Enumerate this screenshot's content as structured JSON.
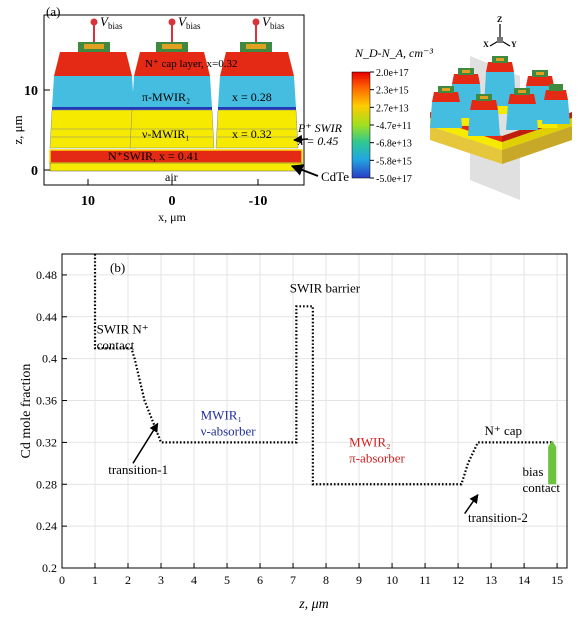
{
  "panel_a": {
    "label": "(a)",
    "bias_labels": [
      "V",
      "bias"
    ],
    "y_ticks": [
      "10",
      "0"
    ],
    "y_label": "z, μm",
    "x_ticks": [
      "10",
      "0",
      "-10"
    ],
    "x_label": "x, μm",
    "layers": {
      "cap": "N⁺ cap layer, x=0.32",
      "pi": "π-MWIR₂",
      "pi_x": "x = 0.28",
      "nu": "ν-MWIR₁",
      "nu_x": "x = 0.32",
      "swir": "N⁺SWIR, x = 0.41",
      "air": "air"
    },
    "pswir_label": "P⁺ SWIR",
    "pswir_x": "x = 0.45",
    "cdte_label": "CdTe",
    "colorbar": {
      "title": "N_D-N_A, cm⁻³",
      "ticks": [
        "2.0e+17",
        "2.3e+15",
        "2.7e+13",
        "-4.7e+11",
        "-6.8e+13",
        "-5.8e+15",
        "-5.0e+17"
      ],
      "colors": [
        "#e60000",
        "#ff6600",
        "#ffcc00",
        "#a0e020",
        "#30c890",
        "#22a8e0",
        "#2a3cc8"
      ]
    },
    "axis_3d": {
      "z": "Z",
      "x": "X",
      "y": "Y"
    }
  },
  "chart_data": {
    "type": "line",
    "title": "(b)",
    "xlabel": "z,  μm",
    "ylabel": "Cd mole fraction",
    "xlim": [
      0,
      15.3
    ],
    "ylim": [
      0.2,
      0.5
    ],
    "xticks": [
      0,
      1,
      2,
      3,
      4,
      5,
      6,
      7,
      8,
      9,
      10,
      11,
      12,
      13,
      14,
      15
    ],
    "yticks": [
      0.2,
      0.24,
      0.28,
      0.32,
      0.36,
      0.4,
      0.44,
      0.48
    ],
    "grid": true,
    "series": [
      {
        "style": "dotted",
        "x": [
          1.0,
          1.0,
          1.1,
          1.1,
          2.1,
          2.2,
          2.5,
          3.0,
          7.1,
          7.1,
          7.6,
          7.6,
          12.1,
          12.3,
          12.6,
          14.9
        ],
        "y": [
          0.5,
          0.41,
          0.41,
          0.41,
          0.41,
          0.4,
          0.36,
          0.32,
          0.32,
          0.45,
          0.45,
          0.28,
          0.28,
          0.3,
          0.32,
          0.32
        ]
      }
    ],
    "bias_contact": {
      "x": 14.85,
      "y_bottom": 0.28,
      "y_top": 0.316,
      "color": "#6dc23c"
    },
    "annotations": [
      {
        "text_lines": [
          "SWIR N⁺",
          "contact"
        ],
        "x": 1.05,
        "y": 0.424,
        "color": "#000000"
      },
      {
        "text_lines": [
          "SWIR barrier"
        ],
        "x": 6.9,
        "y": 0.463,
        "color": "#000000"
      },
      {
        "text_lines": [
          "MWIR₁",
          "ν-absorber"
        ],
        "x": 4.2,
        "y": 0.342,
        "color": "#1f2f9c"
      },
      {
        "text_lines": [
          "MWIR₂",
          "π-absorber"
        ],
        "x": 8.7,
        "y": 0.316,
        "color": "#d22020"
      },
      {
        "text_lines": [
          "N⁺ cap"
        ],
        "x": 12.8,
        "y": 0.327,
        "color": "#000000"
      },
      {
        "text_lines": [
          "bias",
          "contact"
        ],
        "x": 13.95,
        "y": 0.288,
        "color": "#000000"
      },
      {
        "text_lines": [
          "transition-1"
        ],
        "x": 1.4,
        "y": 0.29,
        "color": "#000000"
      },
      {
        "text_lines": [
          "transition-2"
        ],
        "x": 12.3,
        "y": 0.244,
        "color": "#000000"
      }
    ],
    "arrows": [
      {
        "from": [
          2.15,
          0.3
        ],
        "to": [
          2.9,
          0.338
        ]
      },
      {
        "from": [
          12.2,
          0.252
        ],
        "to": [
          12.6,
          0.27
        ]
      }
    ]
  }
}
